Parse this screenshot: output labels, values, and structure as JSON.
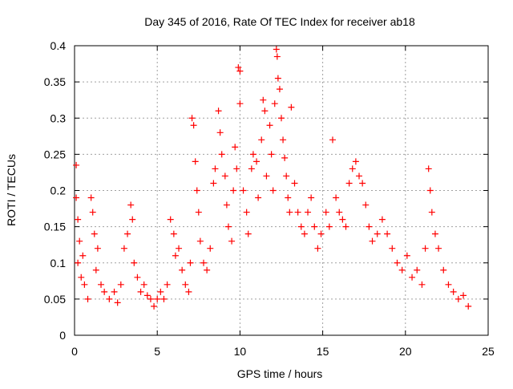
{
  "chart_data": {
    "type": "scatter",
    "title": "Day 345 of 2016, Rate Of TEC Index for receiver ab18",
    "xlabel": "GPS time / hours",
    "ylabel": "ROTI / TECUs",
    "xlim": [
      0,
      25
    ],
    "ylim": [
      0,
      0.4
    ],
    "xticks": [
      0,
      5,
      10,
      15,
      20,
      25
    ],
    "xtick_labels": [
      "0",
      "5",
      "10",
      "15",
      "20",
      "25"
    ],
    "yticks": [
      0,
      0.05,
      0.1,
      0.15,
      0.2,
      0.25,
      0.3,
      0.35,
      0.4
    ],
    "ytick_labels": [
      "0",
      "0.05",
      "0.1",
      "0.15",
      "0.2",
      "0.25",
      "0.3",
      "0.35",
      "0.4"
    ],
    "grid": true,
    "marker": "plus",
    "color": "#ff0000",
    "series": [
      {
        "points": [
          [
            0.1,
            0.235
          ],
          [
            0.1,
            0.19
          ],
          [
            0.2,
            0.16
          ],
          [
            0.3,
            0.13
          ],
          [
            0.2,
            0.1
          ],
          [
            0.4,
            0.08
          ],
          [
            0.5,
            0.11
          ],
          [
            0.6,
            0.07
          ],
          [
            0.8,
            0.05
          ],
          [
            1.0,
            0.19
          ],
          [
            1.1,
            0.17
          ],
          [
            1.2,
            0.14
          ],
          [
            1.4,
            0.12
          ],
          [
            1.3,
            0.09
          ],
          [
            1.6,
            0.07
          ],
          [
            1.8,
            0.06
          ],
          [
            2.1,
            0.05
          ],
          [
            2.4,
            0.06
          ],
          [
            2.6,
            0.045
          ],
          [
            2.8,
            0.07
          ],
          [
            3.0,
            0.12
          ],
          [
            3.2,
            0.14
          ],
          [
            3.4,
            0.18
          ],
          [
            3.5,
            0.16
          ],
          [
            3.6,
            0.1
          ],
          [
            3.8,
            0.08
          ],
          [
            4.0,
            0.06
          ],
          [
            4.2,
            0.07
          ],
          [
            4.4,
            0.055
          ],
          [
            4.6,
            0.05
          ],
          [
            4.8,
            0.04
          ],
          [
            5.0,
            0.05
          ],
          [
            5.2,
            0.06
          ],
          [
            5.4,
            0.05
          ],
          [
            5.6,
            0.07
          ],
          [
            5.8,
            0.16
          ],
          [
            6.0,
            0.14
          ],
          [
            6.1,
            0.11
          ],
          [
            6.3,
            0.12
          ],
          [
            6.5,
            0.09
          ],
          [
            6.7,
            0.07
          ],
          [
            6.9,
            0.06
          ],
          [
            7.0,
            0.1
          ],
          [
            7.1,
            0.3
          ],
          [
            7.2,
            0.29
          ],
          [
            7.3,
            0.24
          ],
          [
            7.4,
            0.2
          ],
          [
            7.5,
            0.17
          ],
          [
            7.6,
            0.13
          ],
          [
            7.8,
            0.1
          ],
          [
            8.0,
            0.09
          ],
          [
            8.2,
            0.12
          ],
          [
            8.4,
            0.21
          ],
          [
            8.5,
            0.23
          ],
          [
            8.7,
            0.31
          ],
          [
            8.8,
            0.28
          ],
          [
            8.9,
            0.25
          ],
          [
            9.1,
            0.22
          ],
          [
            9.2,
            0.18
          ],
          [
            9.3,
            0.15
          ],
          [
            9.5,
            0.13
          ],
          [
            9.6,
            0.2
          ],
          [
            9.7,
            0.26
          ],
          [
            9.8,
            0.23
          ],
          [
            9.9,
            0.37
          ],
          [
            10.0,
            0.365
          ],
          [
            10.0,
            0.32
          ],
          [
            10.2,
            0.2
          ],
          [
            10.4,
            0.17
          ],
          [
            10.5,
            0.14
          ],
          [
            10.7,
            0.23
          ],
          [
            10.8,
            0.25
          ],
          [
            11.0,
            0.24
          ],
          [
            11.1,
            0.19
          ],
          [
            11.3,
            0.27
          ],
          [
            11.4,
            0.325
          ],
          [
            11.5,
            0.31
          ],
          [
            11.6,
            0.22
          ],
          [
            11.8,
            0.29
          ],
          [
            11.9,
            0.25
          ],
          [
            12.0,
            0.2
          ],
          [
            12.1,
            0.32
          ],
          [
            12.2,
            0.395
          ],
          [
            12.25,
            0.385
          ],
          [
            12.3,
            0.355
          ],
          [
            12.4,
            0.34
          ],
          [
            12.5,
            0.3
          ],
          [
            12.6,
            0.27
          ],
          [
            12.7,
            0.245
          ],
          [
            12.8,
            0.22
          ],
          [
            12.9,
            0.19
          ],
          [
            13.0,
            0.17
          ],
          [
            13.1,
            0.315
          ],
          [
            13.3,
            0.21
          ],
          [
            13.5,
            0.17
          ],
          [
            13.7,
            0.15
          ],
          [
            13.9,
            0.14
          ],
          [
            14.1,
            0.17
          ],
          [
            14.3,
            0.19
          ],
          [
            14.5,
            0.15
          ],
          [
            14.7,
            0.12
          ],
          [
            14.9,
            0.14
          ],
          [
            15.2,
            0.17
          ],
          [
            15.4,
            0.15
          ],
          [
            15.6,
            0.27
          ],
          [
            15.8,
            0.19
          ],
          [
            16.0,
            0.17
          ],
          [
            16.2,
            0.16
          ],
          [
            16.4,
            0.15
          ],
          [
            16.6,
            0.21
          ],
          [
            16.8,
            0.23
          ],
          [
            17.0,
            0.24
          ],
          [
            17.2,
            0.22
          ],
          [
            17.4,
            0.21
          ],
          [
            17.6,
            0.18
          ],
          [
            17.8,
            0.15
          ],
          [
            18.0,
            0.13
          ],
          [
            18.3,
            0.14
          ],
          [
            18.6,
            0.16
          ],
          [
            18.9,
            0.14
          ],
          [
            19.2,
            0.12
          ],
          [
            19.5,
            0.1
          ],
          [
            19.8,
            0.09
          ],
          [
            20.1,
            0.11
          ],
          [
            20.4,
            0.08
          ],
          [
            20.7,
            0.09
          ],
          [
            21.0,
            0.07
          ],
          [
            21.2,
            0.12
          ],
          [
            21.4,
            0.23
          ],
          [
            21.5,
            0.2
          ],
          [
            21.6,
            0.17
          ],
          [
            21.8,
            0.14
          ],
          [
            22.0,
            0.12
          ],
          [
            22.3,
            0.09
          ],
          [
            22.6,
            0.07
          ],
          [
            22.9,
            0.06
          ],
          [
            23.2,
            0.05
          ],
          [
            23.5,
            0.055
          ],
          [
            23.8,
            0.04
          ]
        ]
      }
    ]
  }
}
